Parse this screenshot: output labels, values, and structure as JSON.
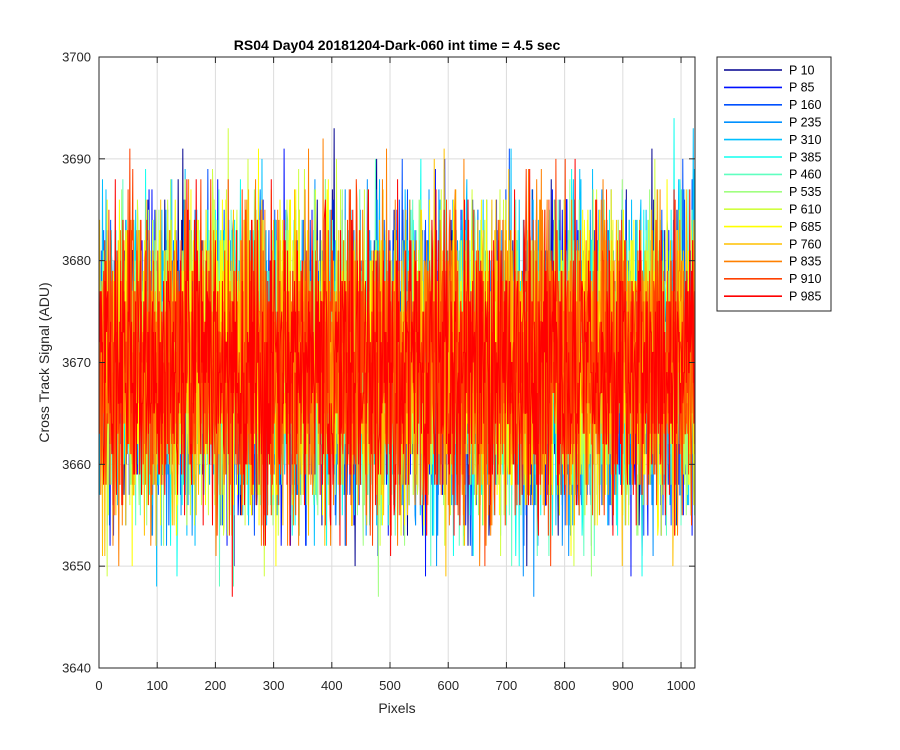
{
  "chart_data": {
    "type": "line",
    "title": "RS04 Day04 20181204-Dark-060 int time = 4.5 sec",
    "xlabel": "Pixels",
    "ylabel": "Cross Track Signal (ADU)",
    "xlim": [
      0,
      1024
    ],
    "ylim": [
      3640,
      3700
    ],
    "xticks": [
      0,
      100,
      200,
      300,
      400,
      500,
      600,
      700,
      800,
      900,
      1000
    ],
    "yticks": [
      3640,
      3650,
      3660,
      3670,
      3680,
      3690,
      3700
    ],
    "grid": true,
    "legend_position": "outside-top-right",
    "noise": {
      "mean": 3670,
      "typical_min": 3653,
      "typical_max": 3688,
      "observed_min": 3641,
      "observed_max": 3697,
      "points_per_series": 1024
    },
    "series": [
      {
        "name": "P 10",
        "color": "#00008f"
      },
      {
        "name": "P 85",
        "color": "#0010ff"
      },
      {
        "name": "P 160",
        "color": "#0050ff"
      },
      {
        "name": "P 235",
        "color": "#0090ff"
      },
      {
        "name": "P 310",
        "color": "#00c0ff"
      },
      {
        "name": "P 385",
        "color": "#10ffef"
      },
      {
        "name": "P 460",
        "color": "#60ffc0"
      },
      {
        "name": "P 535",
        "color": "#a0ff80"
      },
      {
        "name": "P 610",
        "color": "#d0ff40"
      },
      {
        "name": "P 685",
        "color": "#ffff00"
      },
      {
        "name": "P 760",
        "color": "#ffc000"
      },
      {
        "name": "P 835",
        "color": "#ff8000"
      },
      {
        "name": "P 910",
        "color": "#ff4000"
      },
      {
        "name": "P 985",
        "color": "#ff0000"
      }
    ]
  }
}
